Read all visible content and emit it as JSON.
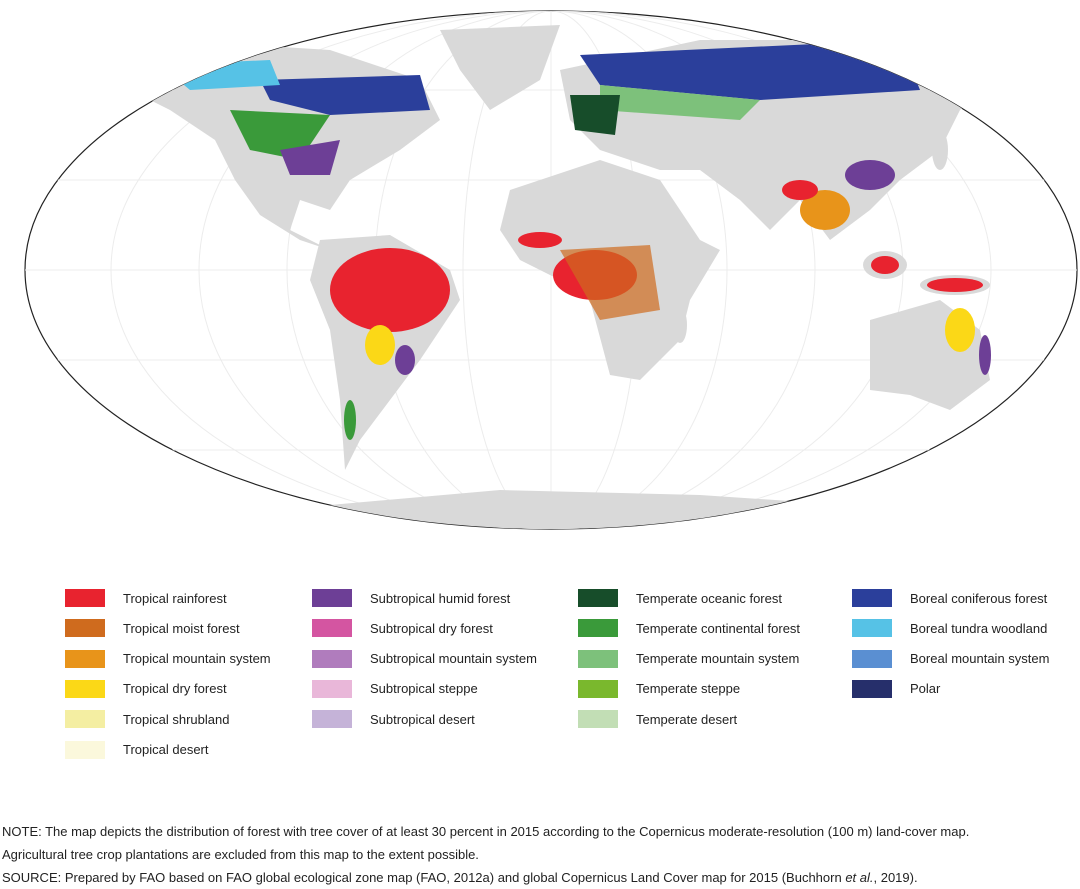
{
  "legend": [
    [
      {
        "label": "Tropical rainforest",
        "color": "#e8232f"
      },
      {
        "label": "Tropical moist forest",
        "color": "#cf6b1e"
      },
      {
        "label": "Tropical mountain system",
        "color": "#e8941a"
      },
      {
        "label": "Tropical dry forest",
        "color": "#fbd817"
      },
      {
        "label": "Tropical shrubland",
        "color": "#f4eea2"
      },
      {
        "label": "Tropical desert",
        "color": "#fbf8dc"
      }
    ],
    [
      {
        "label": "Subtropical humid forest",
        "color": "#6d3f96"
      },
      {
        "label": "Subtropical dry forest",
        "color": "#d455a1"
      },
      {
        "label": "Subtropical mountain system",
        "color": "#b07cbd"
      },
      {
        "label": "Subtropical steppe",
        "color": "#e9b7d9"
      },
      {
        "label": "Subtropical desert",
        "color": "#c5b3d8"
      }
    ],
    [
      {
        "label": "Temperate oceanic forest",
        "color": "#174d2a"
      },
      {
        "label": "Temperate continental forest",
        "color": "#3a9a3a"
      },
      {
        "label": "Temperate mountain system",
        "color": "#7dc17b"
      },
      {
        "label": "Temperate steppe",
        "color": "#7ab82d"
      },
      {
        "label": "Temperate desert",
        "color": "#c2deb5"
      }
    ],
    [
      {
        "label": "Boreal coniferous forest",
        "color": "#2b3f9b"
      },
      {
        "label": "Boreal tundra woodland",
        "color": "#56c2e6"
      },
      {
        "label": "Boreal mountain system",
        "color": "#5a8fd2"
      },
      {
        "label": "Polar",
        "color": "#262f6b"
      }
    ]
  ],
  "note": [
    "NOTE: The map depicts the distribution of forest with tree cover of at least 30 percent in 2015 according to the Copernicus moderate-resolution (100 m) land-cover map.",
    "Agricultural tree crop plantations are excluded from this map to the extent possible."
  ],
  "source": {
    "before": "SOURCE: Prepared by FAO based on FAO global ecological zone map (FAO, 2012a) and global Copernicus Land Cover map for 2015 (Buchhorn ",
    "italic": "et al.",
    "after": ", 2019)."
  }
}
